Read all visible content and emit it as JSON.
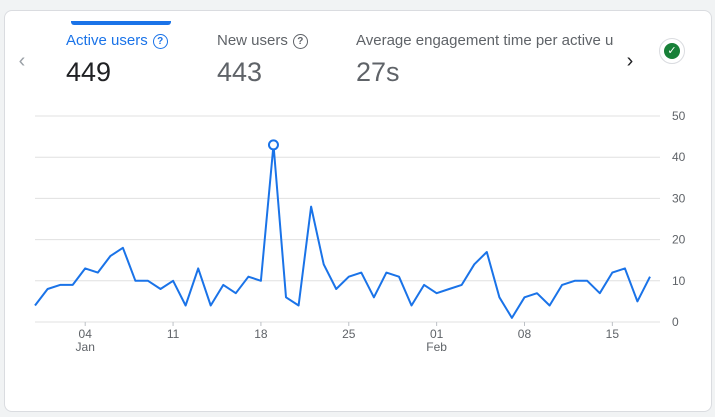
{
  "tabs": [
    {
      "label": "Active users",
      "value": "449",
      "selected": true
    },
    {
      "label": "New users",
      "value": "443",
      "selected": false
    },
    {
      "label": "Average engagement time per active us",
      "value": "27s",
      "selected": false
    }
  ],
  "icons": {
    "prev": "chevron-left-icon",
    "next": "chevron-right-icon",
    "status": "check-circle-icon",
    "help": "help-circle-icon"
  },
  "colors": {
    "accent": "#1a73e8",
    "status": "#188038",
    "grid": "#e0e0e0"
  },
  "chart_data": {
    "type": "line",
    "series": [
      {
        "values": [
          4,
          8,
          9,
          9,
          13,
          12,
          16,
          18,
          10,
          10,
          8,
          10,
          4,
          13,
          4,
          9,
          7,
          11,
          10,
          43,
          6,
          4,
          28,
          14,
          8,
          11,
          12,
          6,
          12,
          11,
          4,
          9,
          7,
          8,
          9,
          14,
          17,
          6,
          1,
          6,
          7,
          4,
          9,
          10,
          10,
          7,
          12,
          13,
          5,
          11
        ]
      }
    ],
    "highlight_index": 19,
    "ylim": [
      0,
      50
    ],
    "yticks": [
      "50",
      "40",
      "30",
      "20",
      "10",
      "0"
    ],
    "xticks": [
      {
        "label": "04",
        "sub": "Jan",
        "index": 4
      },
      {
        "label": "11",
        "sub": "",
        "index": 11
      },
      {
        "label": "18",
        "sub": "",
        "index": 18
      },
      {
        "label": "25",
        "sub": "",
        "index": 25
      },
      {
        "label": "01",
        "sub": "Feb",
        "index": 32
      },
      {
        "label": "08",
        "sub": "",
        "index": 39
      },
      {
        "label": "15",
        "sub": "",
        "index": 46
      }
    ],
    "grid": true
  }
}
